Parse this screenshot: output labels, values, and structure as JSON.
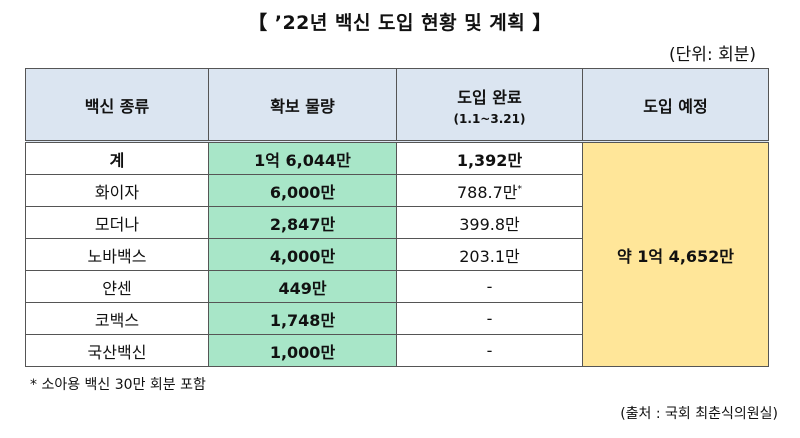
{
  "title": "【 ’22년 백신 도입 현황 및 계획 】",
  "unit": "(단위: 회분)",
  "table": {
    "headers": {
      "type": "백신 종류",
      "secured": "확보 물량",
      "completed": "도입 완료",
      "completed_sub": "(1.1~3.21)",
      "planned": "도입 예정"
    },
    "rows": [
      {
        "type": "계",
        "secured": "1억 6,044만",
        "completed": "1,392만"
      },
      {
        "type": "화이자",
        "secured": "6,000만",
        "completed": "788.7만",
        "mark": "*"
      },
      {
        "type": "모더나",
        "secured": "2,847만",
        "completed": "399.8만"
      },
      {
        "type": "노바백스",
        "secured": "4,000만",
        "completed": "203.1만"
      },
      {
        "type": "얀센",
        "secured": "449만",
        "completed": "-"
      },
      {
        "type": "코백스",
        "secured": "1,748만",
        "completed": "-"
      },
      {
        "type": "국산백신",
        "secured": "1,000만",
        "completed": "-"
      }
    ],
    "planned_total": "약 1억 4,652만"
  },
  "note": "* 소아용 백신 30만 회분 포함",
  "source": "(출처 : 국회 최춘식의원실)"
}
